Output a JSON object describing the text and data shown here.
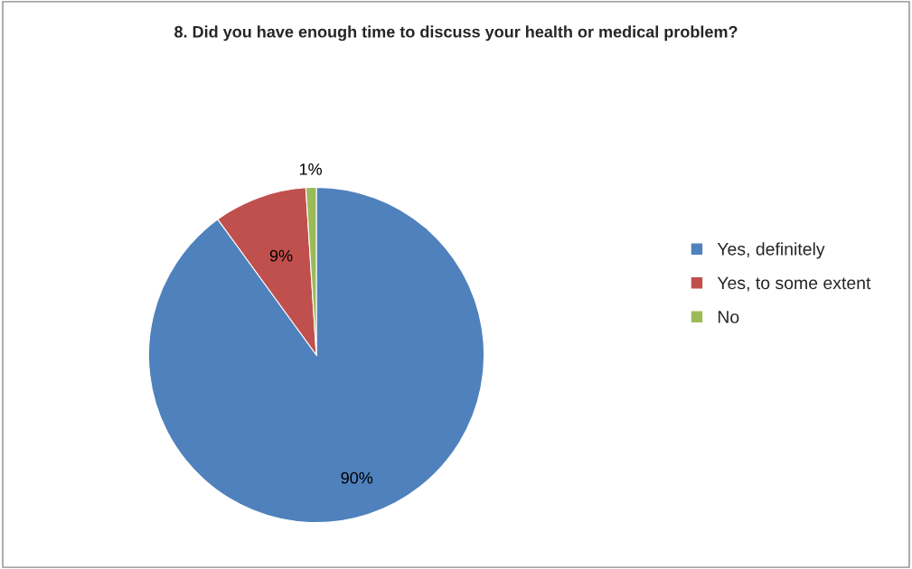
{
  "chart_data": {
    "type": "pie",
    "title": "8. Did you have enough time to discuss your health or medical problem?",
    "categories": [
      "Yes, definitely",
      "Yes, to some extent",
      "No"
    ],
    "values": [
      90,
      9,
      1
    ],
    "colors": [
      "#4f81bd",
      "#c0504d",
      "#9bbb59"
    ],
    "value_labels": [
      "90%",
      "9%",
      "1%"
    ],
    "legend": "right"
  }
}
